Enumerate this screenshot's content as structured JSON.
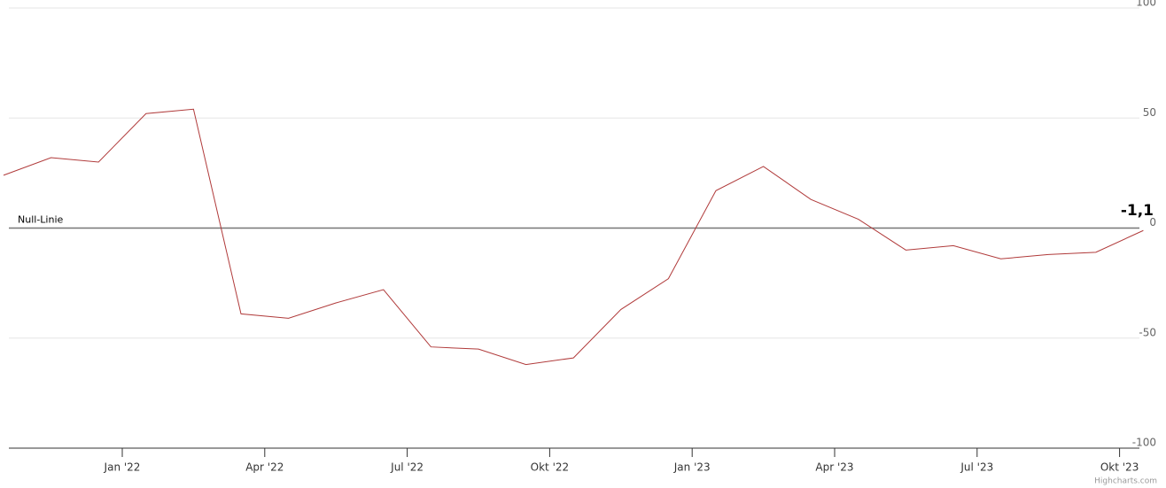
{
  "chart_data": {
    "type": "line",
    "x": [
      "2021-10",
      "2021-11",
      "2021-12",
      "2022-01",
      "2022-02",
      "2022-03",
      "2022-04",
      "2022-05",
      "2022-06",
      "2022-07",
      "2022-08",
      "2022-09",
      "2022-10",
      "2022-11",
      "2022-12",
      "2023-01",
      "2023-02",
      "2023-03",
      "2023-04",
      "2023-05",
      "2023-06",
      "2023-07",
      "2023-08",
      "2023-09",
      "2023-10"
    ],
    "series": [
      {
        "color": "#b03a3a",
        "values": [
          24,
          32,
          30,
          52,
          54,
          -39,
          -41,
          -34,
          -28,
          -54,
          -55,
          -62,
          -59,
          -37,
          -23,
          17,
          28,
          13,
          4,
          -10,
          -8,
          -14,
          -12,
          -11,
          -1.1
        ],
        "value_labels": [
          null,
          null,
          null,
          null,
          null,
          null,
          null,
          null,
          null,
          null,
          null,
          null,
          null,
          null,
          null,
          null,
          null,
          null,
          null,
          null,
          null,
          null,
          null,
          null,
          "-1,1"
        ]
      }
    ],
    "xticks": [
      {
        "value": "2022-01",
        "label": "Jan '22"
      },
      {
        "value": "2022-04",
        "label": "Apr '22"
      },
      {
        "value": "2022-07",
        "label": "Jul '22"
      },
      {
        "value": "2022-10",
        "label": "Okt '22"
      },
      {
        "value": "2023-01",
        "label": "Jan '23"
      },
      {
        "value": "2023-04",
        "label": "Apr '23"
      },
      {
        "value": "2023-07",
        "label": "Jul '23"
      },
      {
        "value": "2023-10",
        "label": "Okt '23"
      }
    ],
    "ylim": [
      -100,
      100
    ],
    "yticks": [
      100,
      50,
      0,
      -50,
      -100
    ],
    "grid": true,
    "plot_lines": [
      {
        "value": 0,
        "label": "Null-Linie"
      }
    ],
    "credits": "Highcharts.com"
  }
}
